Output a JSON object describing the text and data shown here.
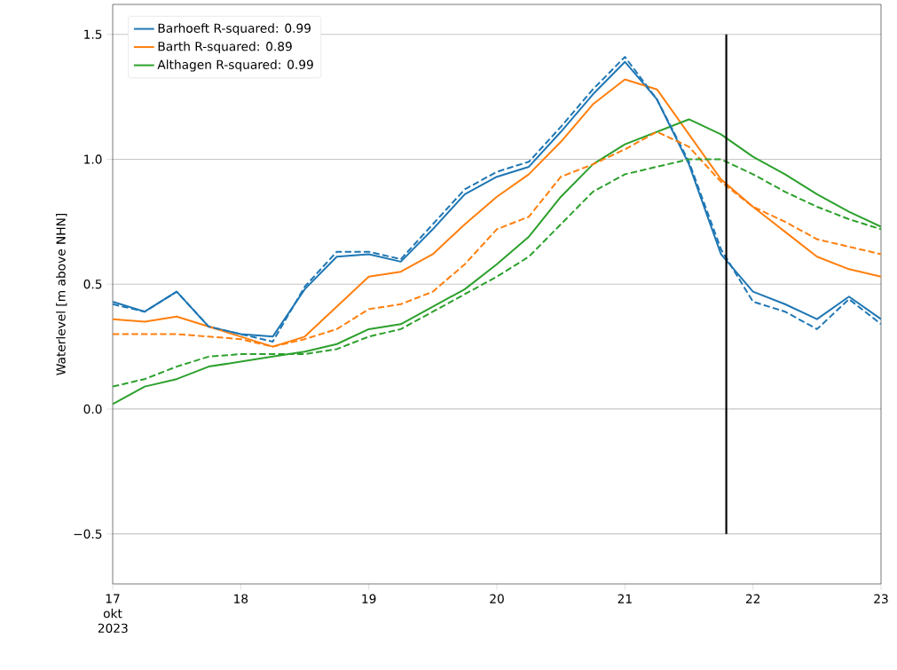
{
  "chart_data": {
    "type": "line",
    "ylabel": "Waterlevel [m above NHN]",
    "x": [
      "2023-10-17T00:00",
      "2023-10-17T06:00",
      "2023-10-17T12:00",
      "2023-10-17T18:00",
      "2023-10-18T00:00",
      "2023-10-18T06:00",
      "2023-10-18T12:00",
      "2023-10-18T18:00",
      "2023-10-19T00:00",
      "2023-10-19T06:00",
      "2023-10-19T12:00",
      "2023-10-19T18:00",
      "2023-10-20T00:00",
      "2023-10-20T06:00",
      "2023-10-20T12:00",
      "2023-10-20T18:00",
      "2023-10-21T00:00",
      "2023-10-21T06:00",
      "2023-10-21T12:00",
      "2023-10-21T18:00",
      "2023-10-22T00:00",
      "2023-10-22T06:00",
      "2023-10-22T12:00",
      "2023-10-22T18:00",
      "2023-10-23T00:00"
    ],
    "series": [
      {
        "name": "Barhoeft R-squared: 0.99",
        "color": "#1f77b4",
        "values": [
          0.43,
          0.39,
          0.47,
          0.33,
          0.3,
          0.29,
          0.48,
          0.61,
          0.62,
          0.59,
          0.72,
          0.86,
          0.93,
          0.97,
          1.11,
          1.26,
          1.39,
          1.24,
          0.98,
          0.62,
          0.47,
          0.42,
          0.36,
          0.45,
          0.36
        ]
      },
      {
        "name": "Barth R-squared: 0.89",
        "color": "#ff7f0e",
        "values": [
          0.36,
          0.35,
          0.37,
          0.33,
          0.29,
          0.25,
          0.29,
          0.41,
          0.53,
          0.55,
          0.62,
          0.74,
          0.85,
          0.94,
          1.07,
          1.22,
          1.32,
          1.28,
          1.1,
          0.92,
          0.81,
          0.71,
          0.61,
          0.56,
          0.53
        ]
      },
      {
        "name": "Althagen R-squared: 0.99",
        "color": "#2ca02c",
        "values": [
          0.02,
          0.09,
          0.12,
          0.17,
          0.19,
          0.21,
          0.23,
          0.26,
          0.32,
          0.34,
          0.41,
          0.48,
          0.58,
          0.69,
          0.85,
          0.98,
          1.06,
          1.11,
          1.16,
          1.1,
          1.01,
          0.94,
          0.86,
          0.79,
          0.73
        ]
      },
      {
        "color": "#1f77b4",
        "line_style": "dashed",
        "values": [
          0.42,
          0.39,
          0.47,
          0.33,
          0.3,
          0.27,
          0.49,
          0.63,
          0.63,
          0.6,
          0.74,
          0.88,
          0.95,
          0.99,
          1.13,
          1.28,
          1.41,
          1.24,
          0.99,
          0.64,
          0.43,
          0.39,
          0.32,
          0.44,
          0.34
        ]
      },
      {
        "color": "#ff7f0e",
        "line_style": "dashed",
        "values": [
          0.3,
          0.3,
          0.3,
          0.29,
          0.28,
          0.25,
          0.28,
          0.32,
          0.4,
          0.42,
          0.47,
          0.58,
          0.72,
          0.77,
          0.93,
          0.98,
          1.04,
          1.11,
          1.05,
          0.91,
          0.81,
          0.75,
          0.68,
          0.65,
          0.62
        ]
      },
      {
        "color": "#2ca02c",
        "line_style": "dashed",
        "values": [
          0.09,
          0.12,
          0.17,
          0.21,
          0.22,
          0.22,
          0.22,
          0.24,
          0.29,
          0.32,
          0.39,
          0.46,
          0.53,
          0.61,
          0.74,
          0.87,
          0.94,
          0.97,
          1.0,
          1.0,
          0.94,
          0.87,
          0.81,
          0.76,
          0.72
        ]
      }
    ],
    "xlim": [
      "2023-10-17",
      "2023-10-23"
    ],
    "xticks": [
      {
        "value": "2023-10-17",
        "label": "17 okt 2023"
      },
      {
        "value": "2023-10-18",
        "label": "18"
      },
      {
        "value": "2023-10-19",
        "label": "19"
      },
      {
        "value": "2023-10-20",
        "label": "20"
      },
      {
        "value": "2023-10-21",
        "label": "21"
      },
      {
        "value": "2023-10-22",
        "label": "22"
      },
      {
        "value": "2023-10-23",
        "label": "23"
      }
    ],
    "ylim": [
      -0.7,
      1.62
    ],
    "yticks": [
      {
        "value": -0.5,
        "label": "−0.5"
      },
      {
        "value": 0.0,
        "label": "0.0"
      },
      {
        "value": 0.5,
        "label": "0.5"
      },
      {
        "value": 1.0,
        "label": "1.0"
      },
      {
        "value": 1.5,
        "label": "1.5"
      }
    ],
    "ref_lines": [
      {
        "axis": "x",
        "value": "2023-10-21T19:00",
        "color": "#000000"
      }
    ],
    "grid": "y",
    "legend": "top left",
    "line_style": "solid"
  }
}
